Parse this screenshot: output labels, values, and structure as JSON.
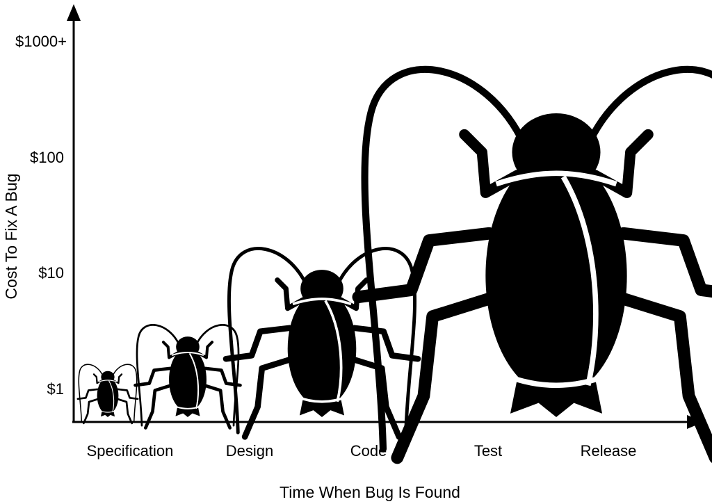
{
  "chart_data": {
    "type": "scatter",
    "title": "",
    "xlabel": "Time When Bug Is Found",
    "ylabel": "Cost To Fix A Bug",
    "categories": [
      "Specification",
      "Design",
      "Code",
      "Test",
      "Release"
    ],
    "y_ticks": [
      "$1",
      "$10",
      "$100",
      "$1000+"
    ],
    "y_scale": "log",
    "ylim": [
      1,
      1000
    ],
    "grid": false,
    "legend": "none",
    "marker": "cockroach-icon",
    "series": [
      {
        "points": [
          {
            "x": "Specification",
            "y": 1,
            "size": 1.0
          },
          {
            "x": "Design",
            "y": 3,
            "size": 1.75
          },
          {
            "x": "Code",
            "y": 15,
            "size": 3.2
          },
          {
            "x": "Test / Release",
            "y": 250,
            "size": 6.6
          }
        ]
      }
    ],
    "colors": {
      "marker": "#000000",
      "axis": "#000000",
      "background": "#ffffff"
    }
  }
}
